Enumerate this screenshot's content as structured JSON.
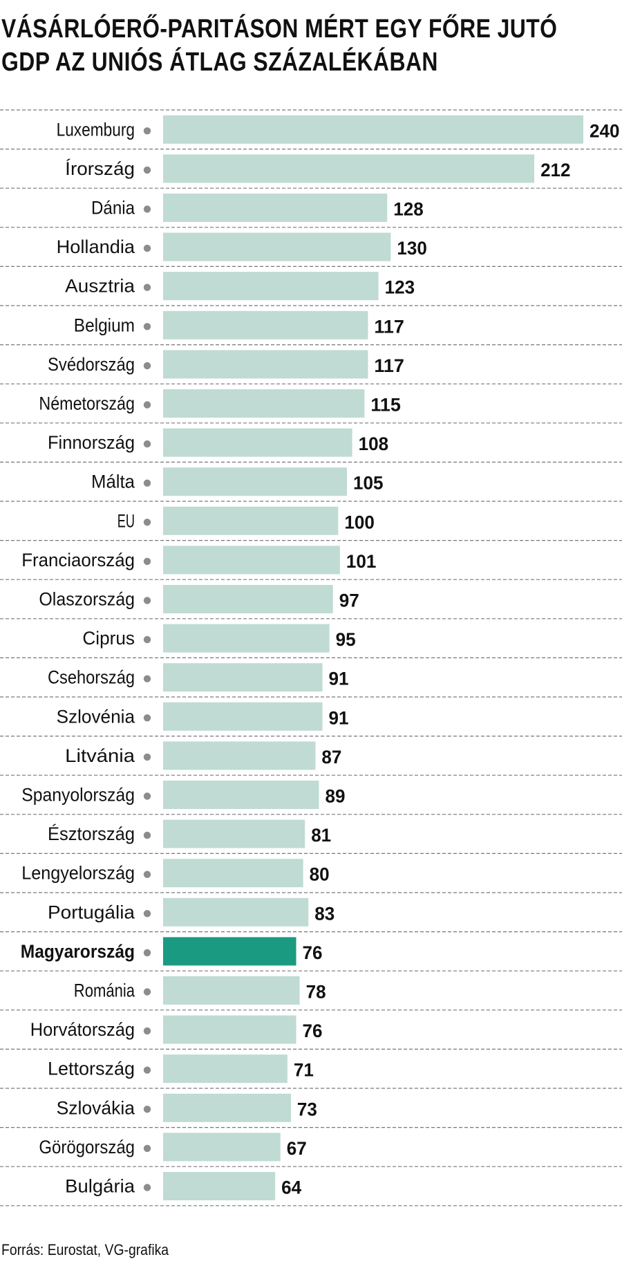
{
  "title_lines": [
    "VÁSÁRLÓERŐ-PARITÁSON MÉRT EGY FŐRE JUTÓ",
    "GDP AZ UNIÓS ÁTLAG SZÁZALÉKÁBAN"
  ],
  "source": "Forrás: Eurostat, VG-grafika",
  "colors": {
    "bar": "#bfdbd3",
    "highlight_bar": "#1a9a80",
    "dot": "#8c8c8c",
    "rule": "#777777"
  },
  "chart_data": {
    "type": "bar",
    "orientation": "horizontal",
    "title": "VÁSÁRLÓERŐ-PARITÁSON MÉRT EGY FŐRE JUTÓ GDP AZ UNIÓS ÁTLAG SZÁZALÉKÁBAN",
    "highlight": "Magyarország",
    "xlim": [
      0,
      240
    ],
    "categories": [
      "Luxemburg",
      "Írország",
      "Dánia",
      "Hollandia",
      "Ausztria",
      "Belgium",
      "Svédország",
      "Németország",
      "Finnország",
      "Málta",
      "EU",
      "Franciaország",
      "Olaszország",
      "Ciprus",
      "Csehország",
      "Szlovénia",
      "Litvánia",
      "Spanyolország",
      "Észtország",
      "Lengyelország",
      "Portugália",
      "Magyarország",
      "Románia",
      "Horvátország",
      "Lettország",
      "Szlovákia",
      "Görögország",
      "Bulgária"
    ],
    "values": [
      240,
      212,
      128,
      130,
      123,
      117,
      117,
      115,
      108,
      105,
      100,
      101,
      97,
      95,
      91,
      91,
      87,
      89,
      81,
      80,
      83,
      76,
      78,
      76,
      71,
      73,
      67,
      64
    ]
  }
}
